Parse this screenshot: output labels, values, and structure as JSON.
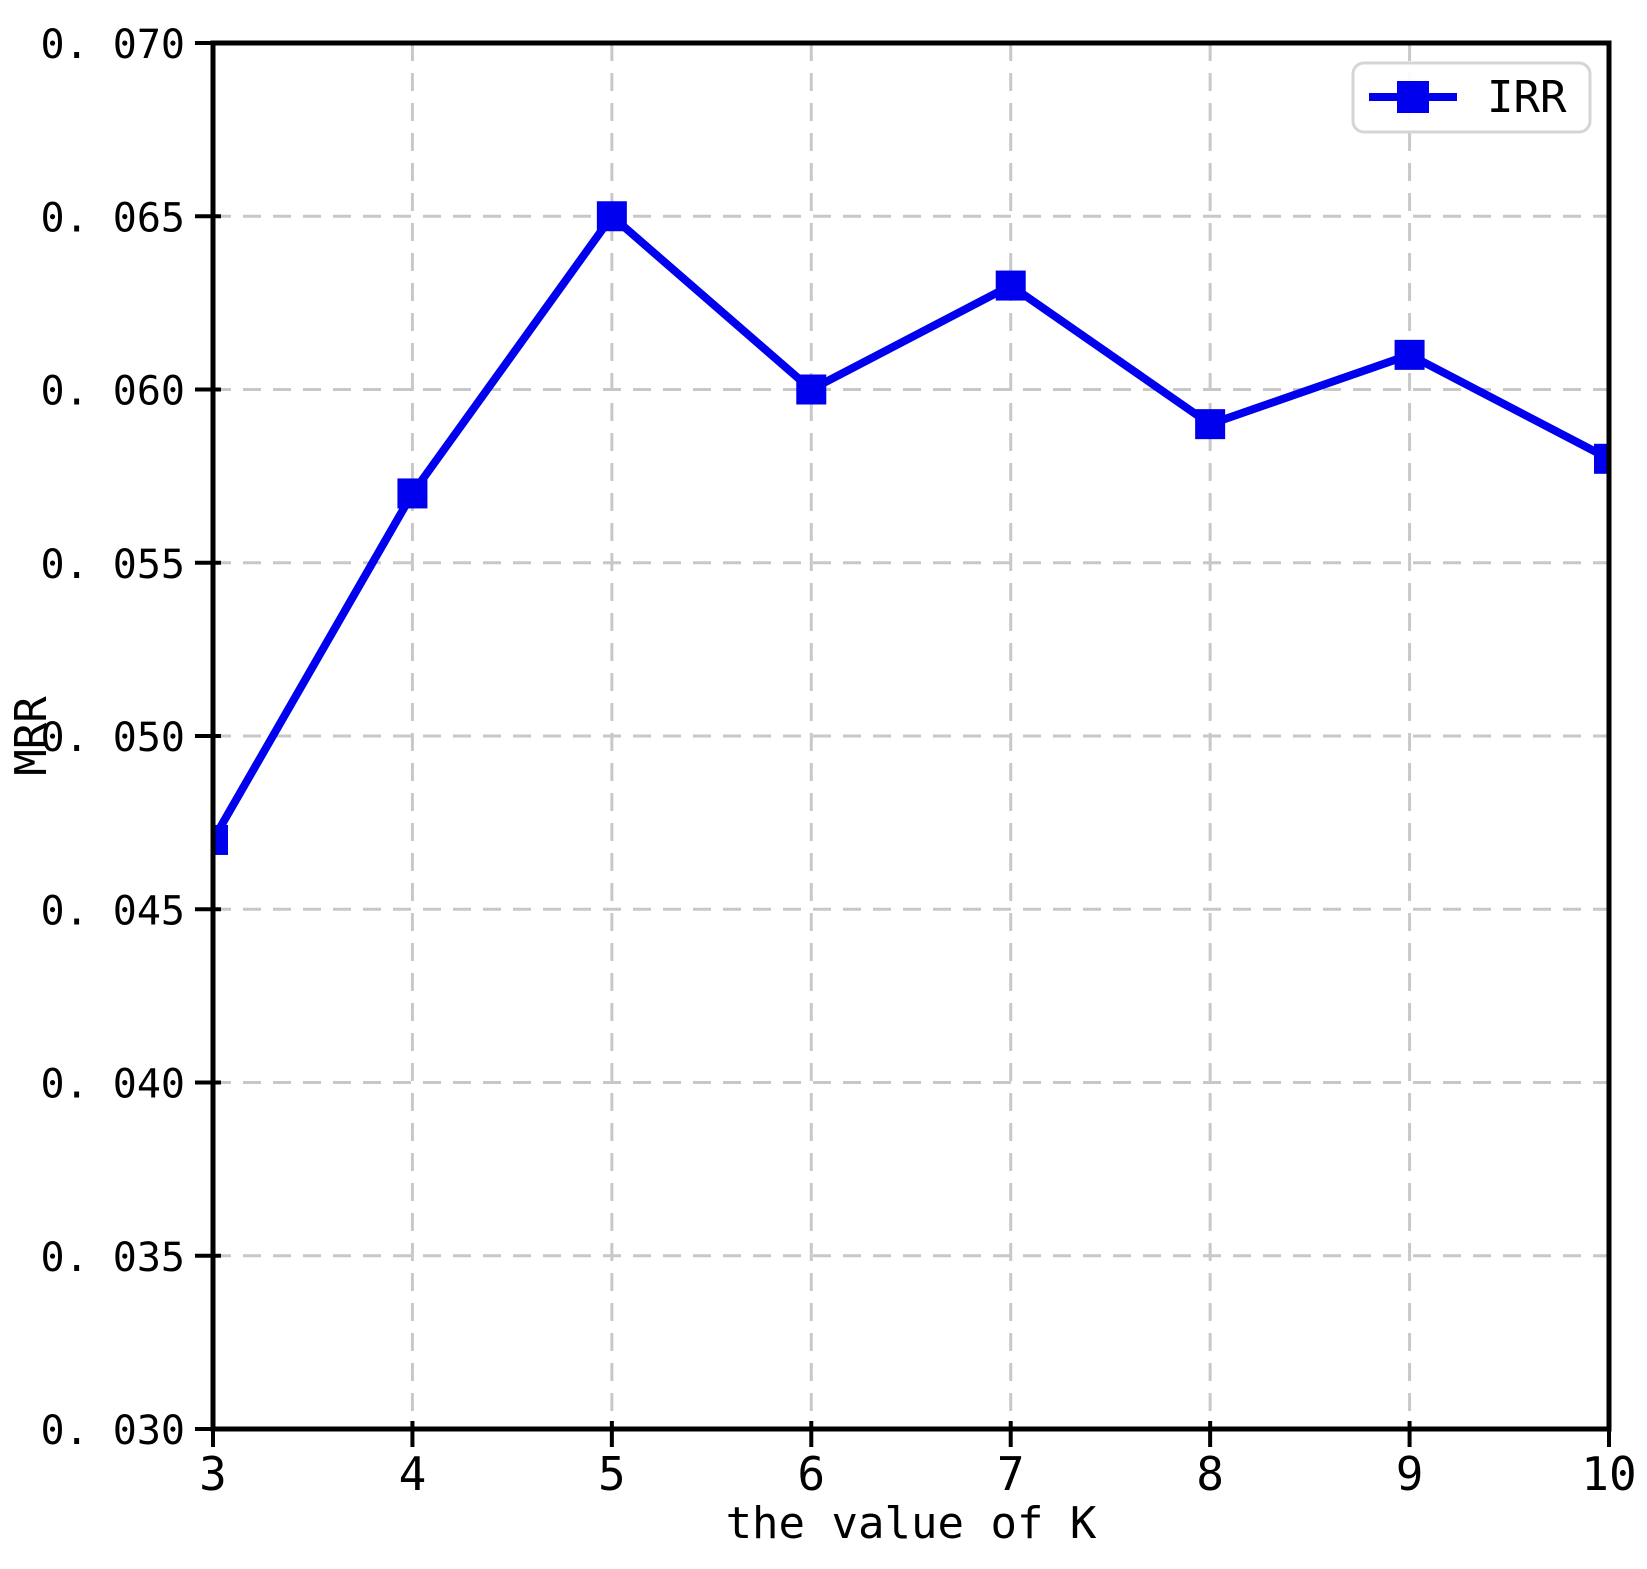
{
  "chart_data": {
    "type": "line",
    "title": "",
    "xlabel": "the value of K",
    "ylabel": "MRR",
    "xlim": [
      3,
      10
    ],
    "ylim": [
      0.03,
      0.07
    ],
    "x": [
      3,
      4,
      5,
      6,
      7,
      8,
      9,
      10
    ],
    "series": [
      {
        "name": "IRR",
        "values": [
          0.047,
          0.057,
          0.065,
          0.06,
          0.063,
          0.059,
          0.061,
          0.058
        ],
        "color": "#0000ee",
        "marker": "square"
      }
    ],
    "xticks": {
      "values": [
        3,
        4,
        5,
        6,
        7,
        8,
        9,
        10
      ],
      "labels": [
        "3",
        "4",
        "5",
        "6",
        "7",
        "8",
        "9",
        "10"
      ]
    },
    "yticks": {
      "values": [
        0.03,
        0.035,
        0.04,
        0.045,
        0.05,
        0.055,
        0.06,
        0.065,
        0.07
      ],
      "labels": [
        "0. 030",
        "0. 035",
        "0. 040",
        "0. 045",
        "0. 050",
        "0. 055",
        "0. 060",
        "0. 065",
        "0. 070"
      ]
    },
    "grid": {
      "show": true,
      "style": "dashed",
      "color": "#c8c8c8"
    },
    "legend": {
      "position": "top-right",
      "entries": [
        {
          "label": "IRR",
          "color": "#0000ee",
          "marker": "square"
        }
      ]
    },
    "axis_color": "#000000",
    "background_color": "#ffffff"
  }
}
